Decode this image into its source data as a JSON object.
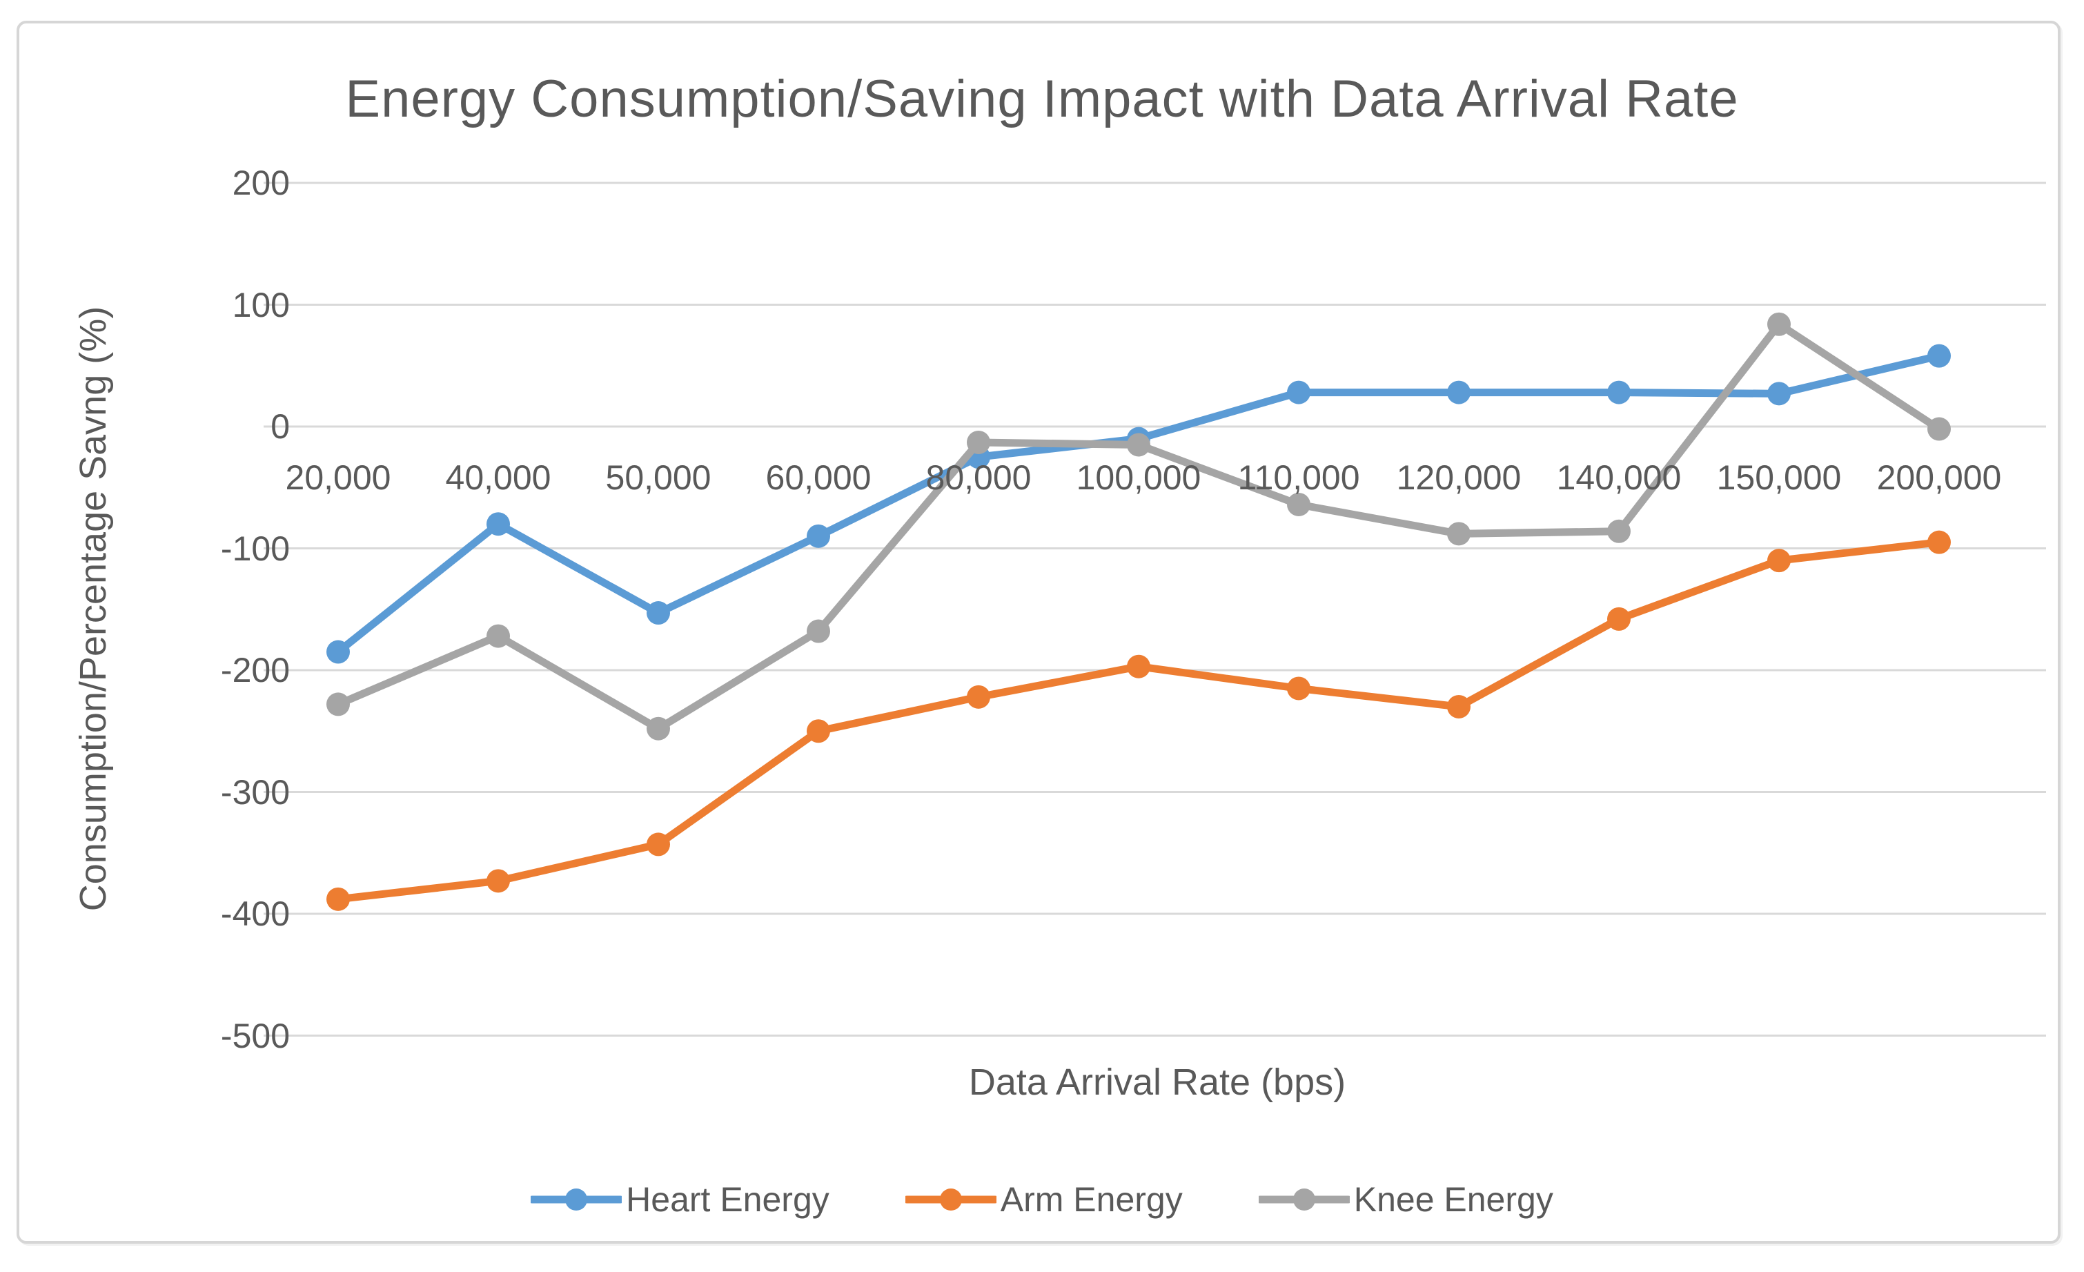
{
  "window": {
    "background": "#FFFFFF",
    "frame_border_color": "#D6D6D6"
  },
  "chart_data": {
    "type": "line",
    "title": "Energy Consumption/Saving Impact with Data Arrival Rate",
    "xlabel": "Data Arrival Rate (bps)",
    "ylabel": "Consumption/Percentage Savng (%)",
    "categories": [
      "20,000",
      "40,000",
      "50,000",
      "60,000",
      "80,000",
      "100,000",
      "110,000",
      "120,000",
      "140,000",
      "150,000",
      "200,000"
    ],
    "series": [
      {
        "name": "Heart Energy",
        "color": "#5B9BD5",
        "values": [
          -185,
          -80,
          -153,
          -90,
          -25,
          -10,
          28,
          28,
          28,
          27,
          58
        ]
      },
      {
        "name": "Arm Energy",
        "color": "#ED7D31",
        "values": [
          -388,
          -373,
          -343,
          -250,
          -222,
          -197,
          -215,
          -230,
          -158,
          -110,
          -95
        ]
      },
      {
        "name": "Knee Energy",
        "color": "#A5A5A5",
        "values": [
          -228,
          -172,
          -248,
          -168,
          -13,
          -15,
          -64,
          -88,
          -86,
          84,
          -2
        ]
      }
    ],
    "ylim": [
      -500,
      200
    ],
    "ytick_step": 100,
    "ytick_labels": [
      "200",
      "100",
      "0",
      "-100",
      "-200",
      "-300",
      "-400",
      "-500"
    ],
    "grid": "horizontal",
    "gridline_color": "#D9D9D9",
    "text_color": "#595959",
    "legend_position": "bottom",
    "marker": "circle"
  }
}
